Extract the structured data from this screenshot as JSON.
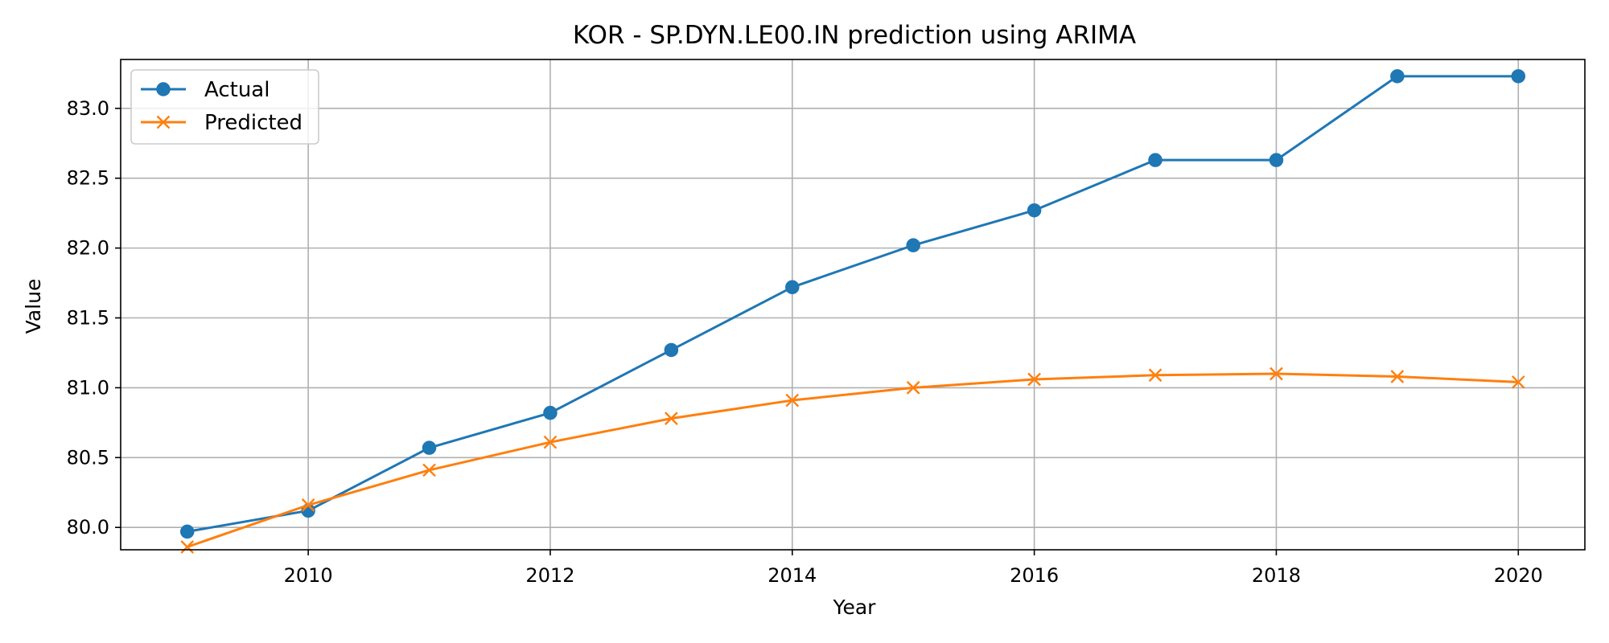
{
  "chart_data": {
    "type": "line",
    "title": "KOR - SP.DYN.LE00.IN prediction using ARIMA",
    "xlabel": "Year",
    "ylabel": "Value",
    "x": [
      2009,
      2010,
      2011,
      2012,
      2013,
      2014,
      2015,
      2016,
      2017,
      2018,
      2019,
      2020
    ],
    "series": [
      {
        "name": "Actual",
        "color": "#1f77b4",
        "marker": "circle",
        "values": [
          79.97,
          80.12,
          80.57,
          80.82,
          81.27,
          81.72,
          82.02,
          82.27,
          82.63,
          82.63,
          83.23,
          83.23
        ]
      },
      {
        "name": "Predicted",
        "color": "#ff7f0e",
        "marker": "x",
        "values": [
          79.86,
          80.16,
          80.41,
          80.61,
          80.78,
          80.91,
          81.0,
          81.06,
          81.09,
          81.1,
          81.08,
          81.04
        ]
      }
    ],
    "xlim": [
      2008.45,
      2020.55
    ],
    "ylim": [
      79.84,
      83.35
    ],
    "xticks": [
      2010,
      2012,
      2014,
      2016,
      2018,
      2020
    ],
    "yticks": [
      80.0,
      80.5,
      81.0,
      81.5,
      82.0,
      82.5,
      83.0
    ],
    "grid": true,
    "legend_position": "top-left"
  }
}
